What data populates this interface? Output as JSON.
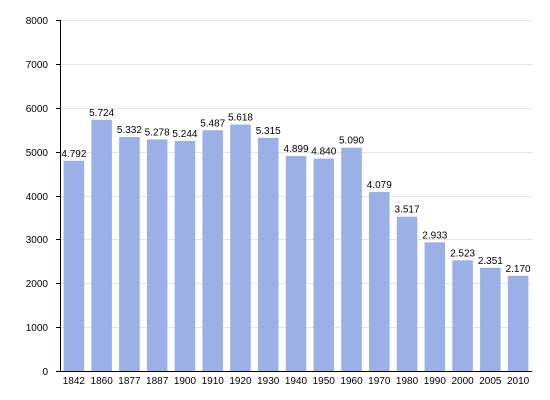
{
  "chart_data": {
    "type": "bar",
    "title": "",
    "xlabel": "",
    "ylabel": "",
    "categories": [
      "1842",
      "1860",
      "1877",
      "1887",
      "1900",
      "1910",
      "1920",
      "1930",
      "1940",
      "1950",
      "1960",
      "1970",
      "1980",
      "1990",
      "2000",
      "2005",
      "2010"
    ],
    "values": [
      4792,
      5724,
      5332,
      5278,
      5244,
      5487,
      5618,
      5315,
      4899,
      4840,
      5090,
      4079,
      3517,
      2933,
      2523,
      2351,
      2170
    ],
    "data_labels": [
      "4.792",
      "5.724",
      "5.332",
      "5.278",
      "5.244",
      "5.487",
      "5.618",
      "5.315",
      "4.899",
      "4.840",
      "5.090",
      "4.079",
      "3.517",
      "2.933",
      "2.523",
      "2.351",
      "2.170"
    ],
    "ylim": [
      0,
      8000
    ],
    "yticks": [
      "0",
      "1000",
      "2000",
      "3000",
      "4000",
      "5000",
      "6000",
      "7000",
      "8000"
    ],
    "grid": true,
    "bar_color": "#9bb0e6",
    "grid_color": "#e6e6e6"
  }
}
